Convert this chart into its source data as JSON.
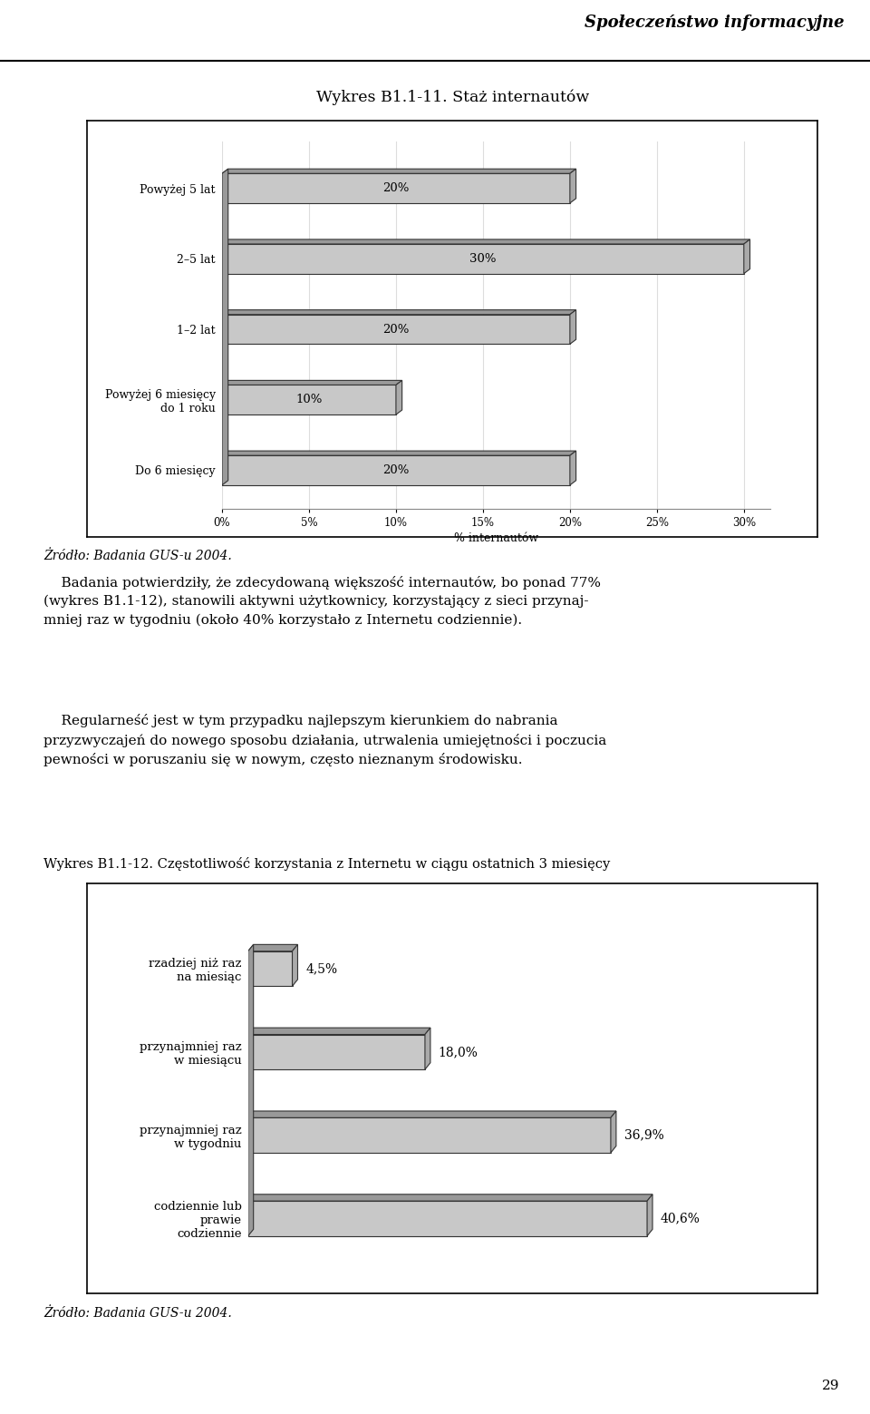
{
  "page_header": "Społeczeństwo informacyjne",
  "chart1_title": "Wykres B1.1-11. Staż internautów",
  "chart1_categories": [
    "Powyżej 5 lat",
    "2–5 lat",
    "1–2 lat",
    "Powyżej 6 miesięcy\ndo 1 roku",
    "Do 6 miesięcy"
  ],
  "chart1_values": [
    20,
    30,
    20,
    10,
    20
  ],
  "chart1_labels": [
    "20%",
    "30%",
    "20%",
    "10%",
    "20%"
  ],
  "chart1_xlabel": "% internautów",
  "chart1_xlim": [
    0,
    30
  ],
  "chart1_xticks": [
    0,
    5,
    10,
    15,
    20,
    25,
    30
  ],
  "chart1_xtick_labels": [
    "0%",
    "5%",
    "10%",
    "15%",
    "20%",
    "25%",
    "30%"
  ],
  "chart1_source": "Żródło: Badania GUS-u 2004.",
  "chart2_title": "Wykres B1.1-12. Częstotliwość korzystania z Internetu w ciągu ostatnich 3 miesięcy",
  "chart2_categories": [
    "rzadziej niż raz\nna miesiąc",
    "przynajmniej raz\nw miesiącu",
    "przynajmniej raz\nw tygodniu",
    "codziennie lub\nprawie\ncodziennie"
  ],
  "chart2_values": [
    4.5,
    18.0,
    36.9,
    40.6
  ],
  "chart2_labels": [
    "4,5%",
    "18,0%",
    "36,9%",
    "40,6%"
  ],
  "chart2_source": "Żródło: Badania GUS-u 2004.",
  "body_text1": "    Badania potwierdziły, że zdecydowaną większość internautów, bo ponad 77%\n(wykres B1.1-12), stanowili aktywni użytkownicy, korzystający z sieci przynaj-\nmniej raz w tygodniu (około 40% korzystało z Internetu codziennie).",
  "body_text2": "    Regularneść jest w tym przypadku najlepszym kierunkiem do nabrania\nprzyzwyczajeń do nowego sposobu działania, utrwalenia umiejętności i poczucia\npewności w poruszaniu się w nowym, często nieznanym środowisku.",
  "bar_face_color": "#c8c8c8",
  "bar_edge_color": "#333333",
  "bar_top_color": "#999999",
  "bar_side_color": "#aaaaaa",
  "spine_color": "#888888",
  "background_color": "#ffffff",
  "page_number": "29",
  "grid_color": "#dddddd"
}
